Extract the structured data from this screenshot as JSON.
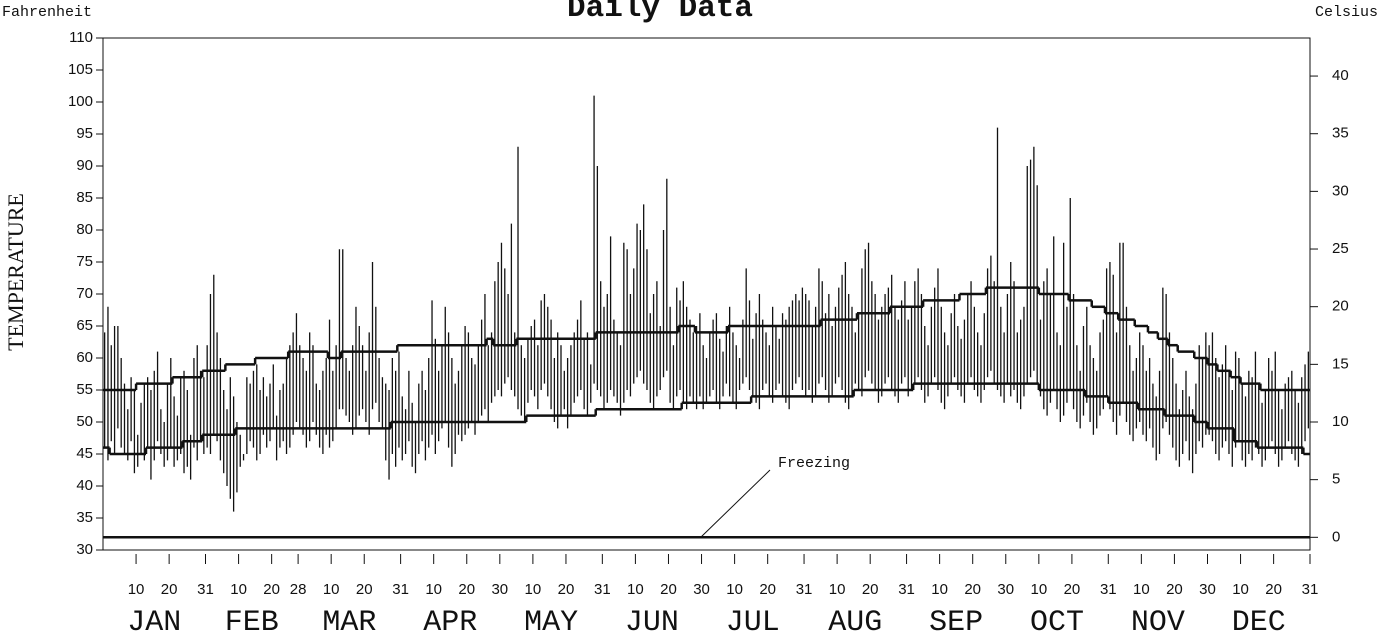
{
  "chart_data": {
    "type": "daily_range",
    "title": "Daily Data",
    "left_unit_label": "Fahrenheit",
    "right_unit_label": "Celsius",
    "y_label": "TEMPERATURE",
    "months": [
      "JAN",
      "FEB",
      "MAR",
      "APR",
      "MAY",
      "JUN",
      "JUL",
      "AUG",
      "SEP",
      "OCT",
      "NOV",
      "DEC"
    ],
    "xlim": [
      0,
      365
    ],
    "xticks": [
      10,
      20,
      31,
      {
        "value": 41,
        "label": "10"
      },
      {
        "value": 51,
        "label": "20"
      },
      {
        "value": 59,
        "label": "28"
      },
      {
        "value": 69,
        "label": "10"
      },
      {
        "value": 79,
        "label": "20"
      },
      {
        "value": 90,
        "label": "31"
      },
      {
        "value": 100,
        "label": "10"
      },
      {
        "value": 110,
        "label": "20"
      },
      {
        "value": 120,
        "label": "30"
      },
      {
        "value": 130,
        "label": "10"
      },
      {
        "value": 140,
        "label": "20"
      },
      {
        "value": 151,
        "label": "31"
      },
      {
        "value": 161,
        "label": "10"
      },
      {
        "value": 171,
        "label": "20"
      },
      {
        "value": 181,
        "label": "30"
      },
      {
        "value": 191,
        "label": "10"
      },
      {
        "value": 201,
        "label": "20"
      },
      {
        "value": 212,
        "label": "31"
      },
      {
        "value": 222,
        "label": "10"
      },
      {
        "value": 232,
        "label": "20"
      },
      {
        "value": 243,
        "label": "31"
      },
      {
        "value": 253,
        "label": "10"
      },
      {
        "value": 263,
        "label": "20"
      },
      {
        "value": 273,
        "label": "30"
      },
      {
        "value": 283,
        "label": "10"
      },
      {
        "value": 293,
        "label": "20"
      },
      {
        "value": 304,
        "label": "31"
      },
      {
        "value": 314,
        "label": "10"
      },
      {
        "value": 324,
        "label": "20"
      },
      {
        "value": 334,
        "label": "30"
      },
      {
        "value": 344,
        "label": "10"
      },
      {
        "value": 354,
        "label": "20"
      },
      {
        "value": 365,
        "label": "31"
      }
    ],
    "ylim": [
      30,
      110
    ],
    "yticks": [
      30,
      35,
      40,
      45,
      50,
      55,
      60,
      65,
      70,
      75,
      80,
      85,
      90,
      95,
      100,
      105,
      110
    ],
    "y2lim": [
      -1.1,
      43.3
    ],
    "y2ticks": [
      0,
      5,
      10,
      15,
      20,
      25,
      30,
      35,
      40
    ],
    "color": "#111111",
    "series": [
      {
        "values": [
          64,
          68,
          62,
          65,
          65,
          60,
          56,
          52,
          57,
          55,
          48,
          53,
          56,
          57,
          55,
          58,
          61,
          52,
          50,
          56,
          60,
          54,
          51,
          57,
          58,
          55,
          48,
          60,
          62,
          58,
          57,
          62,
          70,
          73,
          64,
          60,
          55,
          52,
          57,
          54,
          50,
          48,
          45,
          57,
          56,
          58,
          59,
          55,
          57,
          54,
          56,
          59,
          51,
          55,
          56,
          60,
          62,
          64,
          67,
          62,
          60,
          58,
          64,
          62,
          56,
          55,
          58,
          60,
          66,
          58,
          62,
          77,
          77,
          60,
          58,
          62,
          68,
          65,
          62,
          58,
          64,
          75,
          68,
          60,
          57,
          56,
          55,
          60,
          58,
          61,
          54,
          52,
          58,
          53,
          50,
          56,
          58,
          55,
          60,
          69,
          63,
          58,
          62,
          68,
          64,
          60,
          56,
          58,
          62,
          65,
          64,
          60,
          59,
          62,
          66,
          70,
          62,
          64,
          72,
          75,
          78,
          74,
          70,
          81,
          64,
          93,
          62,
          60,
          63,
          65,
          66,
          62,
          69,
          70,
          68,
          66,
          60,
          64,
          62,
          58,
          60,
          62,
          64,
          66,
          69,
          63,
          64,
          59,
          101,
          90,
          72,
          68,
          70,
          79,
          66,
          64,
          62,
          78,
          77,
          70,
          74,
          81,
          80,
          84,
          77,
          67,
          70,
          72,
          65,
          80,
          88,
          68,
          62,
          71,
          69,
          72,
          68,
          66,
          64,
          65,
          67,
          62,
          60,
          64,
          66,
          67,
          63,
          61,
          65,
          68,
          64,
          62,
          60,
          66,
          74,
          69,
          63,
          67,
          70,
          66,
          64,
          62,
          68,
          65,
          63,
          67,
          66,
          68,
          69,
          70,
          69,
          71,
          70,
          69,
          65,
          68,
          74,
          72,
          67,
          70,
          65,
          68,
          71,
          73,
          75,
          70,
          68,
          64,
          67,
          74,
          77,
          78,
          72,
          70,
          66,
          68,
          70,
          71,
          73,
          68,
          66,
          69,
          72,
          66,
          68,
          72,
          74,
          70,
          65,
          62,
          68,
          71,
          74,
          68,
          64,
          62,
          67,
          70,
          65,
          63,
          66,
          70,
          72,
          68,
          64,
          62,
          67,
          74,
          76,
          72,
          96,
          68,
          64,
          70,
          75,
          72,
          64,
          66,
          68,
          90,
          91,
          93,
          87,
          66,
          72,
          74,
          70,
          79,
          64,
          62,
          78,
          68,
          85,
          70,
          62,
          58,
          65,
          68,
          62,
          60,
          58,
          64,
          66,
          74,
          75,
          73,
          64,
          78,
          78,
          68,
          62,
          58,
          60,
          64,
          62,
          58,
          60,
          56,
          54,
          58,
          71,
          70,
          64,
          60,
          56,
          52,
          55,
          58,
          54,
          52,
          56,
          62,
          60,
          64,
          62,
          64,
          60,
          57,
          59,
          62,
          58,
          55,
          61,
          60,
          56,
          54,
          58,
          57,
          61,
          56,
          53,
          55,
          60,
          58,
          61,
          55,
          52,
          56,
          57,
          58,
          55,
          53,
          57,
          59,
          61
        ]
      },
      {
        "values": [
          46,
          44,
          47,
          45,
          49,
          46,
          45,
          44,
          47,
          42,
          43,
          45,
          44,
          46,
          41,
          44,
          47,
          45,
          43,
          44,
          46,
          43,
          44,
          45,
          42,
          43,
          41,
          46,
          44,
          47,
          45,
          46,
          45,
          48,
          47,
          44,
          42,
          40,
          38,
          36,
          39,
          43,
          44,
          45,
          47,
          46,
          44,
          45,
          48,
          46,
          47,
          49,
          44,
          46,
          47,
          45,
          46,
          48,
          50,
          49,
          48,
          46,
          47,
          50,
          48,
          46,
          45,
          48,
          46,
          47,
          49,
          52,
          52,
          51,
          50,
          48,
          49,
          51,
          52,
          50,
          48,
          52,
          53,
          50,
          49,
          44,
          41,
          45,
          43,
          46,
          44,
          45,
          47,
          43,
          42,
          45,
          47,
          44,
          46,
          48,
          45,
          47,
          49,
          50,
          46,
          43,
          45,
          48,
          47,
          48,
          49,
          50,
          48,
          50,
          51,
          52,
          50,
          53,
          54,
          55,
          54,
          56,
          57,
          55,
          54,
          52,
          51,
          50,
          53,
          55,
          54,
          52,
          55,
          56,
          54,
          52,
          50,
          49,
          51,
          52,
          49,
          51,
          53,
          54,
          55,
          52,
          51,
          53,
          56,
          55,
          54,
          52,
          53,
          55,
          54,
          53,
          51,
          53,
          55,
          54,
          56,
          57,
          58,
          56,
          55,
          53,
          52,
          54,
          55,
          57,
          58,
          53,
          52,
          54,
          55,
          53,
          52,
          54,
          53,
          52,
          54,
          52,
          53,
          54,
          55,
          53,
          52,
          54,
          56,
          54,
          53,
          52,
          55,
          56,
          57,
          55,
          54,
          53,
          52,
          55,
          56,
          54,
          53,
          55,
          56,
          54,
          53,
          52,
          55,
          56,
          57,
          55,
          54,
          55,
          53,
          54,
          56,
          57,
          55,
          53,
          54,
          56,
          57,
          55,
          53,
          52,
          54,
          56,
          55,
          54,
          57,
          58,
          56,
          55,
          53,
          54,
          56,
          57,
          55,
          54,
          53,
          56,
          57,
          54,
          55,
          56,
          57,
          55,
          53,
          54,
          56,
          57,
          55,
          53,
          52,
          54,
          56,
          57,
          55,
          54,
          53,
          56,
          57,
          55,
          54,
          53,
          55,
          57,
          58,
          56,
          55,
          54,
          53,
          56,
          54,
          55,
          53,
          52,
          54,
          56,
          57,
          58,
          56,
          54,
          52,
          51,
          53,
          55,
          52,
          50,
          51,
          53,
          55,
          52,
          50,
          49,
          51,
          53,
          50,
          48,
          49,
          51,
          52,
          54,
          52,
          50,
          48,
          51,
          53,
          50,
          48,
          47,
          49,
          50,
          48,
          47,
          49,
          46,
          44,
          45,
          49,
          50,
          48,
          46,
          44,
          43,
          45,
          47,
          44,
          42,
          45,
          47,
          46,
          48,
          48,
          47,
          45,
          44,
          46,
          47,
          45,
          43,
          46,
          47,
          44,
          43,
          45,
          44,
          46,
          45,
          43,
          44,
          46,
          47,
          45,
          43,
          44,
          46,
          47,
          45,
          44,
          43,
          45,
          47,
          49
        ]
      }
    ],
    "normal_high": {
      "x": [
        1,
        11,
        22,
        31,
        38,
        47,
        57,
        69,
        73,
        90,
        117,
        119,
        126,
        150,
        175,
        180,
        190,
        218,
        229,
        239,
        249,
        260,
        268,
        284,
        293,
        300,
        304,
        308,
        313,
        317,
        320,
        323,
        326,
        331,
        335,
        338,
        342,
        345,
        351
      ],
      "values": [
        55,
        56,
        57,
        58,
        59,
        60,
        61,
        60,
        61,
        62,
        63,
        62,
        63,
        64,
        65,
        64,
        65,
        66,
        67,
        68,
        69,
        70,
        71,
        70,
        69,
        68,
        67,
        66,
        65,
        64,
        63,
        62,
        61,
        60,
        59,
        58,
        57,
        56,
        55
      ]
    },
    "normal_low": {
      "x": [
        1,
        3,
        14,
        25,
        31,
        41,
        88,
        129,
        150,
        176,
        197,
        228,
        246,
        284,
        298,
        305,
        314,
        322,
        331,
        335,
        343,
        350,
        364
      ],
      "values": [
        46,
        45,
        46,
        47,
        48,
        49,
        50,
        51,
        52,
        53,
        54,
        55,
        56,
        55,
        54,
        53,
        52,
        51,
        50,
        49,
        47,
        46,
        45
      ]
    },
    "freezing": {
      "value": 32,
      "label": "Freezing"
    }
  }
}
